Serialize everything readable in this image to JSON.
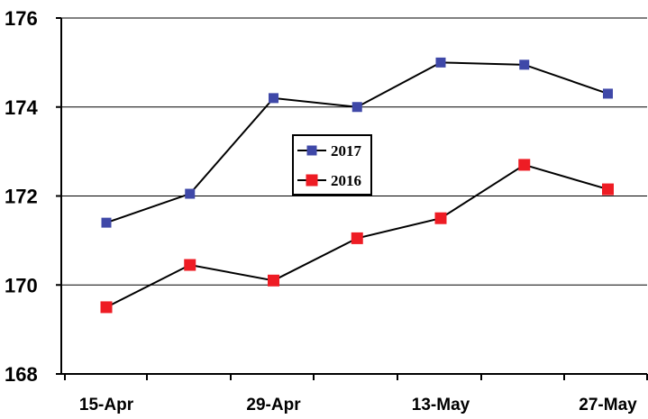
{
  "chart_data": {
    "type": "line",
    "x_tick_labels": [
      "15-Apr",
      "29-Apr",
      "13-May",
      "27-May"
    ],
    "y_tick_labels": [
      "168",
      "170",
      "172",
      "174",
      "176"
    ],
    "ylim": [
      168,
      176
    ],
    "y_ticks": [
      168,
      170,
      172,
      174,
      176
    ],
    "x_positions": [
      0,
      1,
      2,
      3,
      4,
      5,
      6
    ],
    "grid": true,
    "legend_position": "center",
    "series": [
      {
        "name": "2017",
        "color": "#3f48a8",
        "values": [
          171.4,
          172.05,
          174.2,
          174.0,
          175.0,
          174.95,
          174.3
        ]
      },
      {
        "name": "2016",
        "color": "#ee1c24",
        "values": [
          169.5,
          170.45,
          170.1,
          171.05,
          171.5,
          172.7,
          172.15
        ]
      }
    ]
  }
}
